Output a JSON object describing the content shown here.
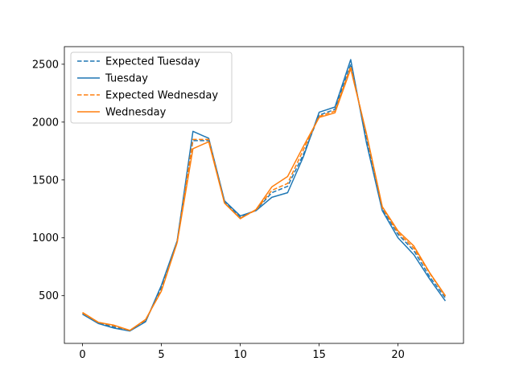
{
  "chart_data": {
    "type": "line",
    "title": "",
    "xlabel": "",
    "ylabel": "",
    "xlim": [
      -1.15,
      24.15
    ],
    "ylim": [
      88,
      2652
    ],
    "xticks": [
      0,
      5,
      10,
      15,
      20
    ],
    "yticks": [
      500,
      1000,
      1500,
      2000,
      2500
    ],
    "grid": false,
    "legend_position": "top-left",
    "x": [
      0,
      1,
      2,
      3,
      4,
      5,
      6,
      7,
      8,
      9,
      10,
      11,
      12,
      13,
      14,
      15,
      16,
      17,
      18,
      19,
      20,
      21,
      22,
      23
    ],
    "series": [
      {
        "name": "Expected Tuesday",
        "color": "#1f77b4",
        "style": "dashed",
        "values": [
          345,
          265,
          230,
          200,
          280,
          570,
          970,
          1840,
          1840,
          1310,
          1180,
          1240,
          1390,
          1445,
          1720,
          2060,
          2110,
          2500,
          1860,
          1250,
          1030,
          890,
          665,
          480
        ]
      },
      {
        "name": "Tuesday",
        "color": "#1f77b4",
        "style": "solid",
        "values": [
          340,
          260,
          220,
          195,
          275,
          590,
          975,
          1920,
          1860,
          1320,
          1190,
          1235,
          1350,
          1390,
          1700,
          2085,
          2130,
          2540,
          1820,
          1235,
          1000,
          855,
          645,
          455
        ]
      },
      {
        "name": "Expected Wednesday",
        "color": "#ff7f0e",
        "style": "dashed",
        "values": [
          350,
          270,
          240,
          200,
          290,
          550,
          960,
          1850,
          1850,
          1300,
          1170,
          1240,
          1410,
          1470,
          1760,
          2050,
          2095,
          2480,
          1890,
          1260,
          1045,
          910,
          695,
          495
        ]
      },
      {
        "name": "Wednesday",
        "color": "#ff7f0e",
        "style": "solid",
        "values": [
          355,
          270,
          245,
          200,
          295,
          540,
          960,
          1770,
          1830,
          1300,
          1165,
          1245,
          1440,
          1530,
          1790,
          2040,
          2080,
          2460,
          1900,
          1270,
          1060,
          930,
          700,
          500
        ]
      }
    ]
  }
}
